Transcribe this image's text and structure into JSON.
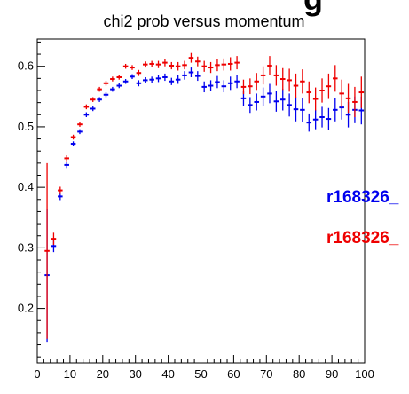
{
  "header": {
    "partial_text": "g"
  },
  "chart_data": {
    "type": "scatter",
    "title": "chi2 prob versus momentum",
    "xlabel": "",
    "ylabel": "",
    "xlim": [
      0,
      100
    ],
    "ylim": [
      0.11,
      0.645
    ],
    "xticks": [
      0,
      10,
      20,
      30,
      40,
      50,
      60,
      70,
      80,
      90,
      100
    ],
    "yticks": [
      0.2,
      0.3,
      0.4,
      0.5,
      0.6
    ],
    "grid": false,
    "legend_position": "right",
    "x_halfwidth": 0.75,
    "series": [
      {
        "name": "r168326_",
        "color": "#0000ee",
        "x": [
          3,
          5,
          7,
          9,
          11,
          13,
          15,
          17,
          19,
          21,
          23,
          25,
          27,
          29,
          31,
          33,
          35,
          37,
          39,
          41,
          43,
          45,
          47,
          49,
          51,
          53,
          55,
          57,
          59,
          61,
          63,
          65,
          67,
          69,
          71,
          73,
          75,
          77,
          79,
          81,
          83,
          85,
          87,
          89,
          91,
          93,
          95,
          97,
          99
        ],
        "y": [
          0.255,
          0.303,
          0.385,
          0.437,
          0.472,
          0.492,
          0.52,
          0.53,
          0.545,
          0.553,
          0.562,
          0.568,
          0.575,
          0.583,
          0.572,
          0.577,
          0.578,
          0.58,
          0.582,
          0.575,
          0.578,
          0.585,
          0.59,
          0.584,
          0.566,
          0.568,
          0.574,
          0.567,
          0.572,
          0.575,
          0.547,
          0.536,
          0.541,
          0.55,
          0.555,
          0.542,
          0.545,
          0.536,
          0.529,
          0.528,
          0.507,
          0.512,
          0.516,
          0.513,
          0.528,
          0.532,
          0.52,
          0.528,
          0.527
        ],
        "yerr": [
          0.11,
          0.01,
          0.006,
          0.005,
          0.004,
          0.004,
          0.004,
          0.004,
          0.004,
          0.004,
          0.004,
          0.004,
          0.004,
          0.004,
          0.005,
          0.005,
          0.005,
          0.006,
          0.006,
          0.006,
          0.007,
          0.007,
          0.008,
          0.008,
          0.009,
          0.009,
          0.01,
          0.01,
          0.011,
          0.011,
          0.012,
          0.013,
          0.014,
          0.015,
          0.016,
          0.017,
          0.018,
          0.019,
          0.02,
          0.02,
          0.015,
          0.016,
          0.017,
          0.018,
          0.019,
          0.02,
          0.021,
          0.022,
          0.023
        ]
      },
      {
        "name": "r168326_",
        "color": "#ee0000",
        "x": [
          3,
          5,
          7,
          9,
          11,
          13,
          15,
          17,
          19,
          21,
          23,
          25,
          27,
          29,
          31,
          33,
          35,
          37,
          39,
          41,
          43,
          45,
          47,
          49,
          51,
          53,
          55,
          57,
          59,
          61,
          63,
          65,
          67,
          69,
          71,
          73,
          75,
          77,
          79,
          81,
          83,
          85,
          87,
          89,
          91,
          93,
          95,
          97,
          99
        ],
        "y": [
          0.295,
          0.315,
          0.395,
          0.448,
          0.483,
          0.504,
          0.533,
          0.545,
          0.562,
          0.572,
          0.579,
          0.582,
          0.6,
          0.598,
          0.589,
          0.603,
          0.604,
          0.603,
          0.606,
          0.601,
          0.6,
          0.602,
          0.614,
          0.608,
          0.6,
          0.598,
          0.602,
          0.603,
          0.604,
          0.606,
          0.566,
          0.567,
          0.575,
          0.585,
          0.601,
          0.585,
          0.579,
          0.577,
          0.568,
          0.575,
          0.557,
          0.546,
          0.56,
          0.567,
          0.58,
          0.555,
          0.547,
          0.541,
          0.557
        ],
        "yerr": [
          0.145,
          0.01,
          0.006,
          0.005,
          0.004,
          0.004,
          0.004,
          0.004,
          0.004,
          0.004,
          0.004,
          0.004,
          0.004,
          0.004,
          0.005,
          0.005,
          0.005,
          0.006,
          0.006,
          0.006,
          0.007,
          0.007,
          0.008,
          0.008,
          0.009,
          0.009,
          0.01,
          0.01,
          0.011,
          0.011,
          0.012,
          0.013,
          0.014,
          0.015,
          0.016,
          0.017,
          0.018,
          0.019,
          0.02,
          0.02,
          0.018,
          0.019,
          0.02,
          0.021,
          0.022,
          0.023,
          0.024,
          0.025,
          0.026
        ]
      }
    ]
  }
}
